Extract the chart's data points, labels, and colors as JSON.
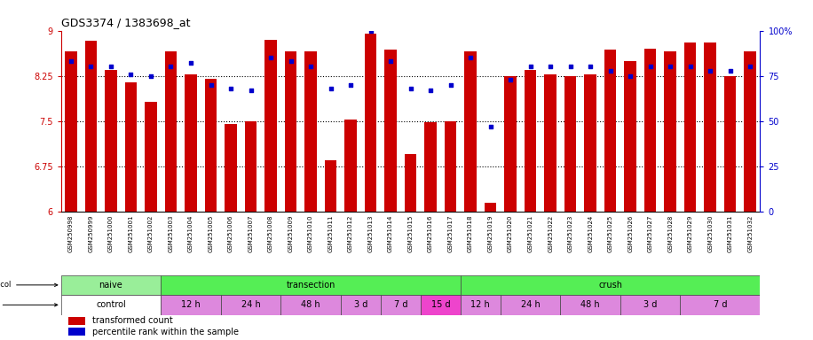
{
  "title": "GDS3374 / 1383698_at",
  "categories": [
    "GSM250998",
    "GSM250999",
    "GSM251000",
    "GSM251001",
    "GSM251002",
    "GSM251003",
    "GSM251004",
    "GSM251005",
    "GSM251006",
    "GSM251007",
    "GSM251008",
    "GSM251009",
    "GSM251010",
    "GSM251011",
    "GSM251012",
    "GSM251013",
    "GSM251014",
    "GSM251015",
    "GSM251016",
    "GSM251017",
    "GSM251018",
    "GSM251019",
    "GSM251020",
    "GSM251021",
    "GSM251022",
    "GSM251023",
    "GSM251024",
    "GSM251025",
    "GSM251026",
    "GSM251027",
    "GSM251028",
    "GSM251029",
    "GSM251030",
    "GSM251031",
    "GSM251032"
  ],
  "bar_values": [
    8.65,
    8.83,
    8.35,
    8.15,
    7.82,
    8.65,
    8.28,
    8.2,
    7.45,
    7.5,
    8.85,
    8.65,
    8.65,
    6.85,
    7.52,
    8.95,
    8.68,
    6.95,
    7.48,
    7.5,
    8.65,
    6.15,
    8.25,
    8.35,
    8.28,
    8.25,
    8.28,
    8.68,
    8.5,
    8.7,
    8.65,
    8.8,
    8.8,
    8.25,
    8.65
  ],
  "blue_values": [
    83,
    80,
    80,
    76,
    75,
    80,
    82,
    70,
    68,
    67,
    85,
    83,
    80,
    68,
    70,
    100,
    83,
    68,
    67,
    70,
    85,
    47,
    73,
    80,
    80,
    80,
    80,
    78,
    75,
    80,
    80,
    80,
    78,
    78,
    80
  ],
  "ylim_left": [
    6,
    9
  ],
  "ylim_right": [
    0,
    100
  ],
  "yticks_left": [
    6,
    6.75,
    7.5,
    8.25,
    9
  ],
  "yticks_right": [
    0,
    25,
    50,
    75,
    100
  ],
  "bar_color": "#cc0000",
  "dot_color": "#0000cc",
  "bg_color": "#ffffff",
  "xticklabel_bg": "#dddddd",
  "protocol_groups": [
    {
      "label": "naive",
      "start": 0,
      "end": 4,
      "color": "#99ee99"
    },
    {
      "label": "transection",
      "start": 5,
      "end": 19,
      "color": "#55ee55"
    },
    {
      "label": "crush",
      "start": 20,
      "end": 34,
      "color": "#55ee55"
    }
  ],
  "time_groups": [
    {
      "label": "control",
      "start": 0,
      "end": 4,
      "color": "#ffffff"
    },
    {
      "label": "12 h",
      "start": 5,
      "end": 7,
      "color": "#dd88dd"
    },
    {
      "label": "24 h",
      "start": 8,
      "end": 10,
      "color": "#dd88dd"
    },
    {
      "label": "48 h",
      "start": 11,
      "end": 13,
      "color": "#dd88dd"
    },
    {
      "label": "3 d",
      "start": 14,
      "end": 15,
      "color": "#dd88dd"
    },
    {
      "label": "7 d",
      "start": 16,
      "end": 17,
      "color": "#dd88dd"
    },
    {
      "label": "15 d",
      "start": 18,
      "end": 19,
      "color": "#ee44cc"
    },
    {
      "label": "12 h",
      "start": 20,
      "end": 21,
      "color": "#dd88dd"
    },
    {
      "label": "24 h",
      "start": 22,
      "end": 24,
      "color": "#dd88dd"
    },
    {
      "label": "48 h",
      "start": 25,
      "end": 27,
      "color": "#dd88dd"
    },
    {
      "label": "3 d",
      "start": 28,
      "end": 30,
      "color": "#dd88dd"
    },
    {
      "label": "7 d",
      "start": 31,
      "end": 34,
      "color": "#dd88dd"
    }
  ]
}
